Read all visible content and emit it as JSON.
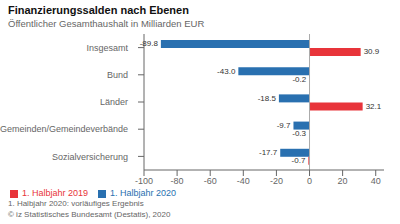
{
  "chart_data": {
    "type": "bar",
    "orientation": "horizontal",
    "title": "Finanzierungssalden nach Ebenen",
    "subtitle": "Öffentlicher Gesamthaushalt in Milliarden EUR",
    "categories": [
      "Insgesamt",
      "Bund",
      "Länder",
      "Gemeinden/Gemeindeverbände",
      "Sozialversicherung"
    ],
    "series": [
      {
        "name": "1. Halbjahr 2020",
        "color": "#2970b0",
        "values": [
          -89.8,
          -43.0,
          -18.5,
          -9.7,
          -17.7
        ],
        "value_labels": [
          "-89.8",
          "-43.0",
          "-18.5",
          "-9.7",
          "-17.7"
        ]
      },
      {
        "name": "1. Halbjahr 2019",
        "color": "#e8343a",
        "values": [
          30.9,
          -0.2,
          32.1,
          -0.3,
          -0.7
        ],
        "value_labels": [
          "30.9",
          "-0.2",
          "32.1",
          "-0.3",
          "-0.7"
        ]
      }
    ],
    "xlim": [
      -100,
      45
    ],
    "xticks": [
      -100,
      -80,
      -60,
      -40,
      -20,
      0,
      20,
      40
    ],
    "grid": false,
    "legend": "lower left",
    "data_labels": true,
    "annotations": [
      "1. Halbjahr 2020: vorläufiges Ergebnis",
      "© iz Statistisches Bundesamt (Destatis), 2020"
    ]
  }
}
